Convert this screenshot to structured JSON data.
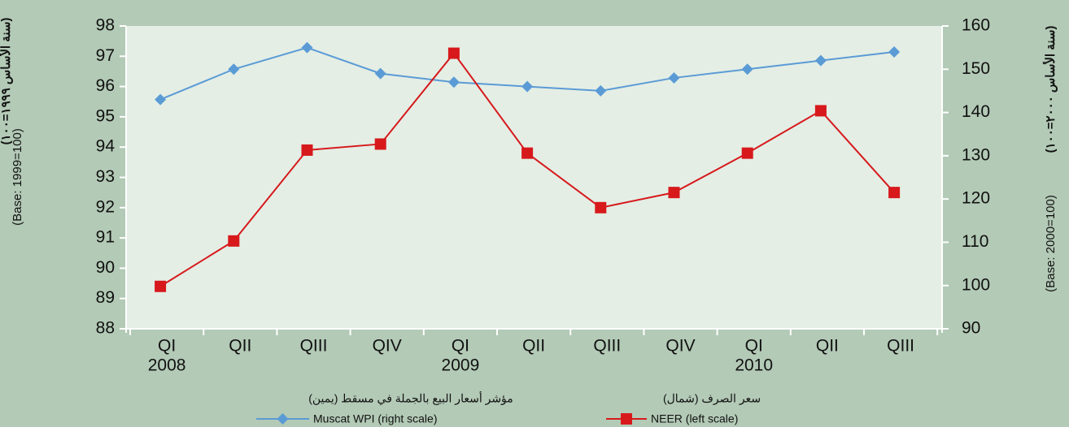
{
  "chart_data": {
    "type": "line",
    "categories": [
      "QI",
      "QII",
      "QIII",
      "QIV",
      "QI",
      "QII",
      "QIII",
      "QIV",
      "QI",
      "QII",
      "QIII"
    ],
    "years": [
      "2008",
      null,
      null,
      null,
      "2009",
      null,
      null,
      null,
      "2010",
      null,
      null
    ],
    "series": [
      {
        "name": "Muscat WPI (right scale)",
        "name_ar": "مؤشر أسعار البيع بالجملة في مسقط (يمين)",
        "color": "#5b9bd5",
        "marker": "diamond",
        "axis": "y2",
        "values": [
          143,
          150,
          155,
          149,
          147,
          146,
          145,
          148,
          150,
          152,
          154
        ]
      },
      {
        "name": "NEER (left scale)",
        "name_ar": "سعر الصرف (شمال)",
        "color": "#d7191c",
        "marker": "square",
        "values": [
          89.4,
          90.9,
          93.9,
          94.1,
          97.1,
          93.8,
          92.0,
          92.5,
          93.8,
          95.2,
          92.5
        ]
      }
    ],
    "ylabel": "(Base: 1999=100)",
    "ylabel_ar": "(سنة الأساس ١٩٩٩=١٠٠)",
    "y2label": "(Base: 2000=100)",
    "y2label_ar": "(سنة الأساس ٢٠٠٠=١٠٠)",
    "ylim": [
      88,
      98
    ],
    "yticks": [
      88,
      89,
      90,
      91,
      92,
      93,
      94,
      95,
      96,
      97,
      98
    ],
    "y2lim": [
      90,
      160
    ],
    "y2ticks": [
      90,
      100,
      110,
      120,
      130,
      140,
      150,
      160
    ],
    "grid": false
  }
}
